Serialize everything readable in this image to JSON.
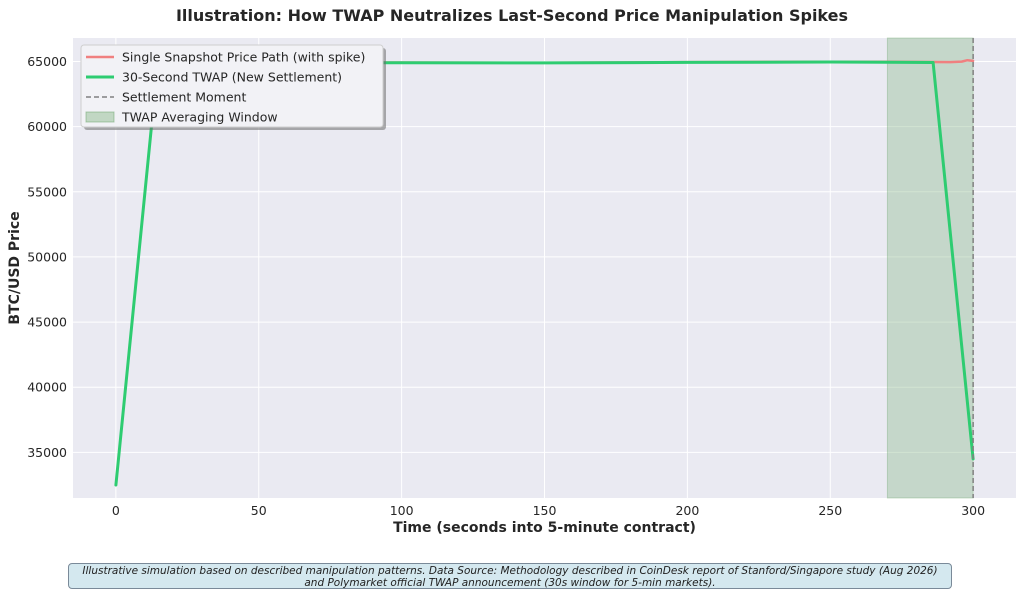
{
  "chart_data": {
    "type": "line",
    "title": "Illustration: How TWAP Neutralizes Last-Second Price Manipulation Spikes",
    "xlabel": "Time (seconds into 5-minute contract)",
    "ylabel": "BTC/USD Price",
    "xlim": [
      -15,
      315
    ],
    "ylim": [
      31500,
      66800
    ],
    "xticks": [
      0,
      50,
      100,
      150,
      200,
      250,
      300
    ],
    "yticks": [
      35000,
      40000,
      45000,
      50000,
      55000,
      60000,
      65000
    ],
    "grid": true,
    "legend_position": "top-left",
    "series": [
      {
        "name": "Single Snapshot Price Path (with spike)",
        "color": "#f08080",
        "x": [
          0,
          50,
          100,
          150,
          200,
          250,
          270,
          285,
          292,
          296,
          298,
          300
        ],
        "y": [
          65010,
          64950,
          64920,
          64900,
          64950,
          64980,
          64980,
          64960,
          64950,
          64990,
          65100,
          65040
        ]
      },
      {
        "name": "30-Second TWAP (New Settlement)",
        "color": "#2ecc71",
        "x": [
          0,
          13,
          30,
          60,
          100,
          150,
          200,
          250,
          270,
          286,
          300
        ],
        "y": [
          32500,
          61200,
          64850,
          64900,
          64900,
          64890,
          64930,
          64960,
          64940,
          64920,
          34500
        ]
      }
    ],
    "settlement": {
      "name": "Settlement Moment",
      "x": 300,
      "color": "#808080"
    },
    "window": {
      "name": "TWAP Averaging Window",
      "x_start": 270,
      "x_end": 300,
      "color": "#8fbc8f"
    }
  },
  "footnote": {
    "line1": "Illustrative simulation based on described manipulation patterns. Data Source: Methodology described in CoinDesk report of Stanford/Singapore study (Aug 2026)",
    "line2": "and Polymarket official TWAP announcement (30s window for 5-min markets)."
  }
}
